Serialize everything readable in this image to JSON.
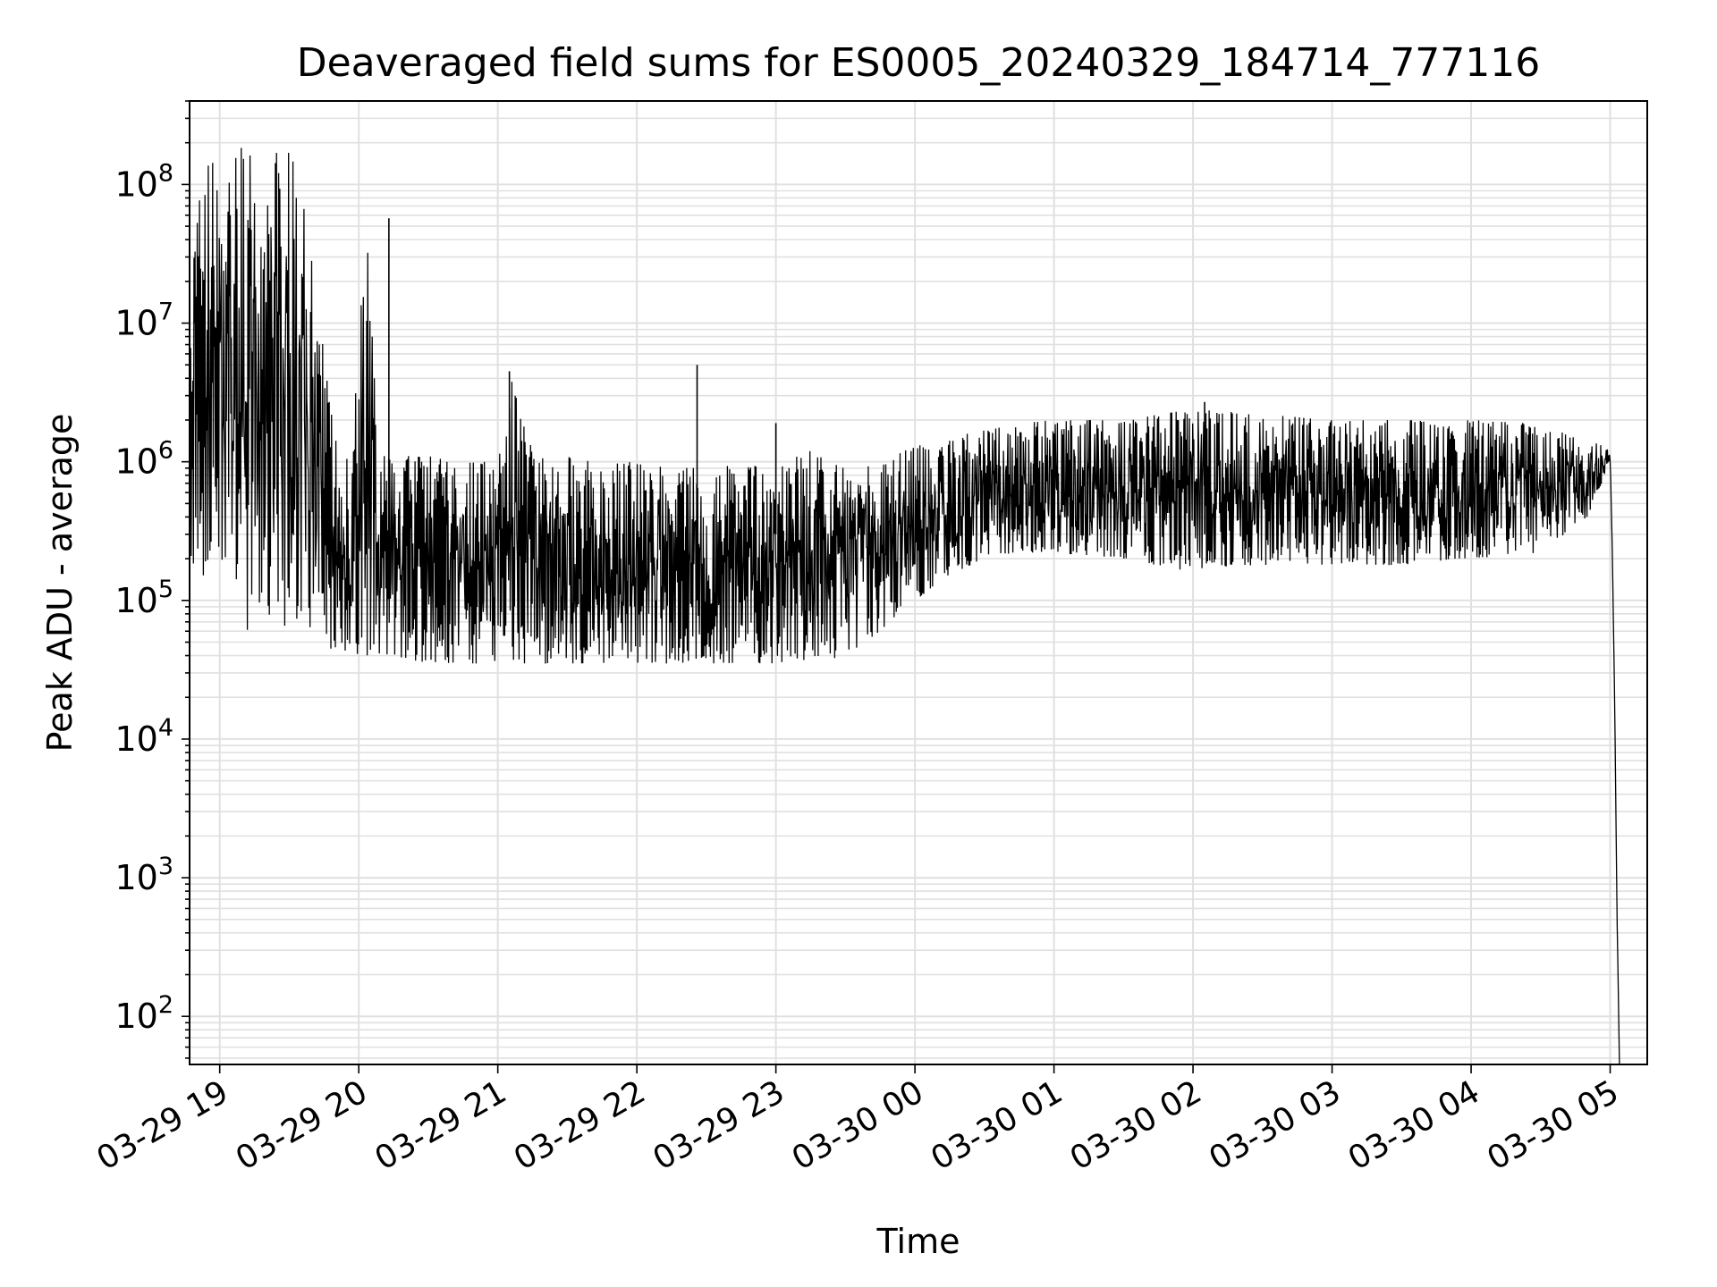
{
  "chart_data": {
    "type": "line",
    "title": "Deaveraged field sums for ES0005_20240329_184714_777116",
    "xlabel": "Time",
    "ylabel": "Peak ADU - average",
    "x_scale": "time",
    "y_scale": "log",
    "grid": true,
    "line_color": "#000000",
    "grid_color": "#e0e0e0",
    "xlim": [
      "2024-03-29 18:47",
      "2024-03-30 05:16"
    ],
    "ylim": [
      45,
      400000000
    ],
    "x_ticks": [
      {
        "value": "2024-03-29 19:00",
        "label": "03-29 19"
      },
      {
        "value": "2024-03-29 20:00",
        "label": "03-29 20"
      },
      {
        "value": "2024-03-29 21:00",
        "label": "03-29 21"
      },
      {
        "value": "2024-03-29 22:00",
        "label": "03-29 22"
      },
      {
        "value": "2024-03-29 23:00",
        "label": "03-29 23"
      },
      {
        "value": "2024-03-30 00:00",
        "label": "03-30 00"
      },
      {
        "value": "2024-03-30 01:00",
        "label": "03-30 01"
      },
      {
        "value": "2024-03-30 02:00",
        "label": "03-30 02"
      },
      {
        "value": "2024-03-30 03:00",
        "label": "03-30 03"
      },
      {
        "value": "2024-03-30 04:00",
        "label": "03-30 04"
      },
      {
        "value": "2024-03-30 05:00",
        "label": "03-30 05"
      }
    ],
    "y_ticks": [
      {
        "value": 100,
        "base": "10",
        "exp": "2"
      },
      {
        "value": 1000,
        "base": "10",
        "exp": "3"
      },
      {
        "value": 10000,
        "base": "10",
        "exp": "4"
      },
      {
        "value": 100000,
        "base": "10",
        "exp": "5"
      },
      {
        "value": 1000000,
        "base": "10",
        "exp": "6"
      },
      {
        "value": 10000000,
        "base": "10",
        "exp": "7"
      },
      {
        "value": 100000000,
        "base": "10",
        "exp": "8"
      }
    ],
    "series": [
      {
        "line_style": "noisy",
        "x": [
          "2024-03-29 18:47",
          "2024-03-29 18:53",
          "2024-03-29 18:59",
          "2024-03-29 19:05",
          "2024-03-29 19:10",
          "2024-03-29 19:15",
          "2024-03-29 19:21",
          "2024-03-29 19:27",
          "2024-03-29 19:33",
          "2024-03-29 19:39",
          "2024-03-29 19:45",
          "2024-03-29 19:51",
          "2024-03-29 19:57",
          "2024-03-29 20:03",
          "2024-03-29 20:09",
          "2024-03-29 20:15",
          "2024-03-29 20:30",
          "2024-03-29 20:45",
          "2024-03-29 21:00",
          "2024-03-29 21:05",
          "2024-03-29 21:15",
          "2024-03-29 21:30",
          "2024-03-29 21:45",
          "2024-03-29 22:00",
          "2024-03-29 22:15",
          "2024-03-29 22:30",
          "2024-03-29 22:45",
          "2024-03-29 23:00",
          "2024-03-29 23:15",
          "2024-03-29 23:30",
          "2024-03-29 23:45",
          "2024-03-30 00:00",
          "2024-03-30 00:15",
          "2024-03-30 00:30",
          "2024-03-30 00:45",
          "2024-03-30 01:00",
          "2024-03-30 01:30",
          "2024-03-30 02:00",
          "2024-03-30 02:30",
          "2024-03-30 03:00",
          "2024-03-30 03:30",
          "2024-03-30 04:00",
          "2024-03-30 04:30",
          "2024-03-30 04:50",
          "2024-03-30 05:00",
          "2024-03-30 05:01",
          "2024-03-30 05:02",
          "2024-03-30 05:03",
          "2024-03-30 05:04"
        ],
        "low": [
          200000,
          150000,
          200000,
          150000,
          45000,
          50000,
          80000,
          60000,
          60000,
          55000,
          50000,
          40000,
          40000,
          40000,
          40000,
          40000,
          35000,
          35000,
          35000,
          35000,
          35000,
          35000,
          35000,
          35000,
          35000,
          35000,
          35000,
          35000,
          35000,
          40000,
          60000,
          100000,
          150000,
          200000,
          220000,
          220000,
          200000,
          160000,
          180000,
          180000,
          180000,
          200000,
          220000,
          400000,
          900000,
          200000,
          15000,
          500,
          45
        ],
        "high": [
          20000000,
          150000000,
          140000000,
          150000000,
          190000000,
          190000000,
          190000000,
          190000000,
          180000000,
          35000000,
          6000000,
          1200000,
          1000000,
          60000000,
          1200000,
          1100000,
          1100000,
          1000000,
          1000000,
          4500000,
          1200000,
          1100000,
          1000000,
          1000000,
          900000,
          1000000,
          900000,
          1000000,
          1200000,
          900000,
          1000000,
          1300000,
          1500000,
          1700000,
          1900000,
          2000000,
          2000000,
          2400000,
          2200000,
          2000000,
          2000000,
          2000000,
          1900000,
          1400000,
          1300000,
          200000,
          15000,
          500,
          45
        ]
      }
    ],
    "spikes": [
      {
        "x": "2024-03-29 20:13",
        "y": 57000000
      },
      {
        "x": "2024-03-29 21:05",
        "y": 4500000
      },
      {
        "x": "2024-03-29 22:26",
        "y": 5000000
      },
      {
        "x": "2024-03-29 23:00",
        "y": 1900000
      },
      {
        "x": "2024-03-30 02:05",
        "y": 2700000
      }
    ]
  }
}
